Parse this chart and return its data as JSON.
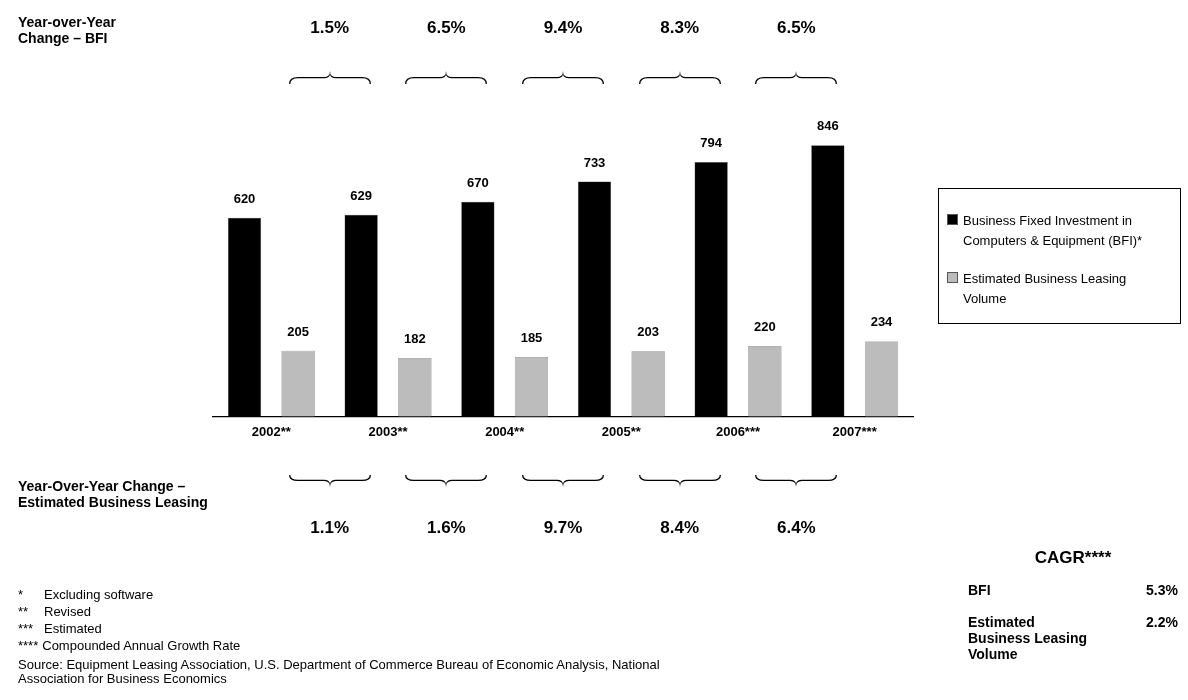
{
  "chart_data": {
    "type": "bar",
    "categories": [
      "2002**",
      "2003**",
      "2004**",
      "2005**",
      "2006***",
      "2007***"
    ],
    "series": [
      {
        "name": "Business Fixed Investment in Computers & Equipment (BFI)*",
        "color": "#000000",
        "values": [
          620,
          629,
          670,
          733,
          794,
          846
        ]
      },
      {
        "name": "Estimated Business Leasing Volume",
        "color": "#bcbcbc",
        "values": [
          205,
          182,
          185,
          203,
          220,
          234
        ]
      }
    ],
    "data_labels": true,
    "legend": "right",
    "grid": false,
    "tick_labels": "x",
    "annotations": [
      "Year-over-Year Change – BFI",
      "1.5%",
      "6.5%",
      "9.4%",
      "8.3%",
      "6.5%",
      "Year-Over-Year Change – Estimated Business Leasing",
      "1.1%",
      "1.6%",
      "9.7%",
      "8.4%",
      "6.4%",
      "CAGR****",
      "BFI",
      "5.3%",
      "Estimated Business Leasing Volume",
      "2.2%",
      "*",
      "Excluding software",
      "**",
      "Revised",
      "***",
      "Estimated",
      "****",
      "Compounded Annual Growth Rate",
      "Source: Equipment Leasing Association, U.S. Department of Commerce Bureau of Economic Analysis, National Association for Business Economics"
    ]
  }
}
